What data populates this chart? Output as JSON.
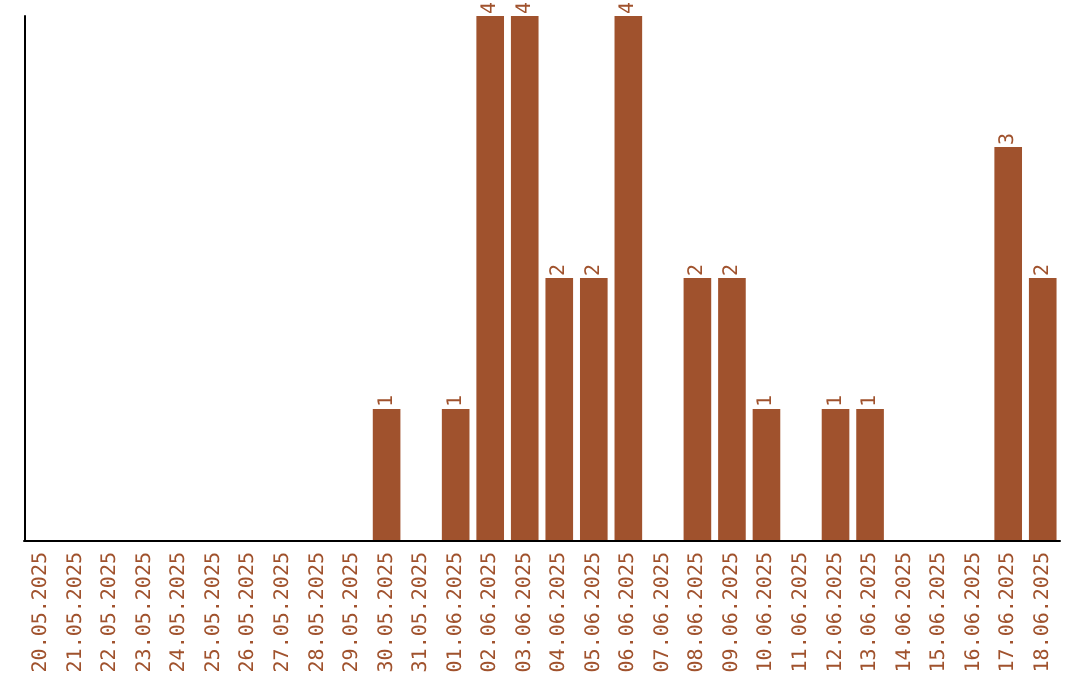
{
  "chart_data": {
    "type": "bar",
    "categories": [
      "20.05.2025",
      "21.05.2025",
      "22.05.2025",
      "23.05.2025",
      "24.05.2025",
      "25.05.2025",
      "26.05.2025",
      "27.05.2025",
      "28.05.2025",
      "29.05.2025",
      "30.05.2025",
      "31.05.2025",
      "01.06.2025",
      "02.06.2025",
      "03.06.2025",
      "04.06.2025",
      "05.06.2025",
      "06.06.2025",
      "07.06.2025",
      "08.06.2025",
      "09.06.2025",
      "10.06.2025",
      "11.06.2025",
      "12.06.2025",
      "13.06.2025",
      "14.06.2025",
      "15.06.2025",
      "16.06.2025",
      "17.06.2025",
      "18.06.2025"
    ],
    "values": [
      0,
      0,
      0,
      0,
      0,
      0,
      0,
      0,
      0,
      0,
      1,
      0,
      1,
      4,
      4,
      2,
      2,
      4,
      0,
      2,
      2,
      1,
      0,
      1,
      1,
      0,
      0,
      0,
      3,
      2
    ],
    "value_labels": [
      null,
      null,
      null,
      null,
      null,
      null,
      null,
      null,
      null,
      null,
      "1",
      null,
      "1",
      "4",
      "4",
      "2",
      "2",
      "4",
      null,
      "2",
      "2",
      "1",
      null,
      "1",
      "1",
      null,
      null,
      null,
      "3",
      "2"
    ],
    "color": "#a0522d",
    "ylim": [
      0,
      4
    ],
    "tick_labels": "x",
    "grid": false
  }
}
